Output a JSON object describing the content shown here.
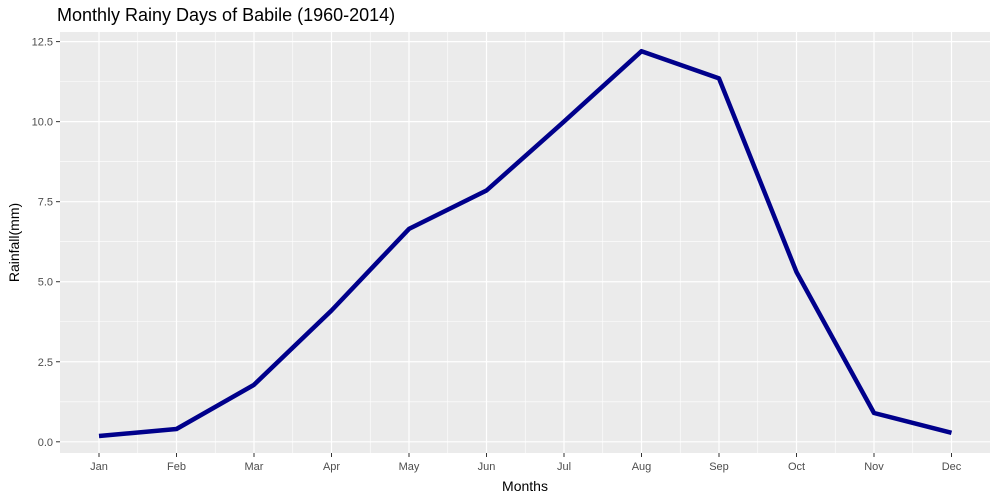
{
  "chart_data": {
    "type": "line",
    "title": "Monthly Rainy Days of Babile (1960-2014)",
    "xlabel": "Months",
    "ylabel": "Rainfall(mm)",
    "categories": [
      "Jan",
      "Feb",
      "Mar",
      "Apr",
      "May",
      "Jun",
      "Jul",
      "Aug",
      "Sep",
      "Oct",
      "Nov",
      "Dec"
    ],
    "series": [
      {
        "values": [
          0.18,
          0.4,
          1.78,
          4.1,
          6.65,
          7.85,
          10.0,
          12.2,
          11.35,
          5.3,
          0.9,
          0.28
        ]
      }
    ],
    "ylim": [
      -0.35,
      12.8
    ],
    "yticks": [
      0.0,
      2.5,
      5.0,
      7.5,
      10.0,
      12.5
    ],
    "ytick_labels": [
      "0.0",
      "2.5",
      "5.0",
      "7.5",
      "10.0",
      "12.5"
    ],
    "grid": true,
    "colors": {
      "line": "#00008b",
      "panel": "#ebebeb",
      "grid": "#ffffff"
    }
  }
}
